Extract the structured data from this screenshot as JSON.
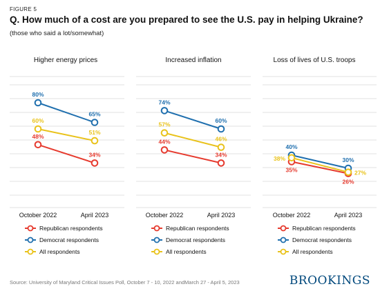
{
  "figure_label": "FIGURE 5",
  "title": "Q. How much of a cost are you prepared to see the U.S. pay in helping Ukraine?",
  "subtitle": "(those who said a lot/somewhat)",
  "source": "Source: University of Maryland Critical Issues Poll, October 7 - 10, 2022 andMarch 27 - April 5, 2023",
  "brand": "BROOKINGS",
  "colors": {
    "republican": "#e63a2e",
    "democrat": "#1f6fae",
    "all": "#e9c21a",
    "grid": "#d9d9d9"
  },
  "chart_data": [
    {
      "type": "line",
      "title": "Higher energy prices",
      "x": [
        "October 2022",
        "April 2023"
      ],
      "ylim": [
        0,
        100
      ],
      "series": [
        {
          "name": "Republican respondents",
          "color_key": "republican",
          "values": [
            48,
            34
          ],
          "labels": [
            "48%",
            "34%"
          ]
        },
        {
          "name": "Democrat respondents",
          "color_key": "democrat",
          "values": [
            80,
            65
          ],
          "labels": [
            "80%",
            "65%"
          ]
        },
        {
          "name": "All respondents",
          "color_key": "all",
          "values": [
            60,
            51
          ],
          "labels": [
            "60%",
            "51%"
          ]
        }
      ]
    },
    {
      "type": "line",
      "title": "Increased inflation",
      "x": [
        "October 2022",
        "April 2023"
      ],
      "ylim": [
        0,
        100
      ],
      "series": [
        {
          "name": "Republican respondents",
          "color_key": "republican",
          "values": [
            44,
            34
          ],
          "labels": [
            "44%",
            "34%"
          ]
        },
        {
          "name": "Democrat respondents",
          "color_key": "democrat",
          "values": [
            74,
            60
          ],
          "labels": [
            "74%",
            "60%"
          ]
        },
        {
          "name": "All respondents",
          "color_key": "all",
          "values": [
            57,
            46
          ],
          "labels": [
            "57%",
            "46%"
          ]
        }
      ]
    },
    {
      "type": "line",
      "title": "Loss of lives of U.S. troops",
      "x": [
        "October 2022",
        "April 2023"
      ],
      "ylim": [
        0,
        100
      ],
      "series": [
        {
          "name": "Republican respondents",
          "color_key": "republican",
          "values": [
            35,
            26
          ],
          "labels": [
            "35%",
            "26%"
          ]
        },
        {
          "name": "Democrat respondents",
          "color_key": "democrat",
          "values": [
            40,
            30
          ],
          "labels": [
            "40%",
            "30%"
          ]
        },
        {
          "name": "All respondents",
          "color_key": "all",
          "values": [
            38,
            27
          ],
          "labels": [
            "38%",
            "27%"
          ]
        }
      ]
    }
  ]
}
